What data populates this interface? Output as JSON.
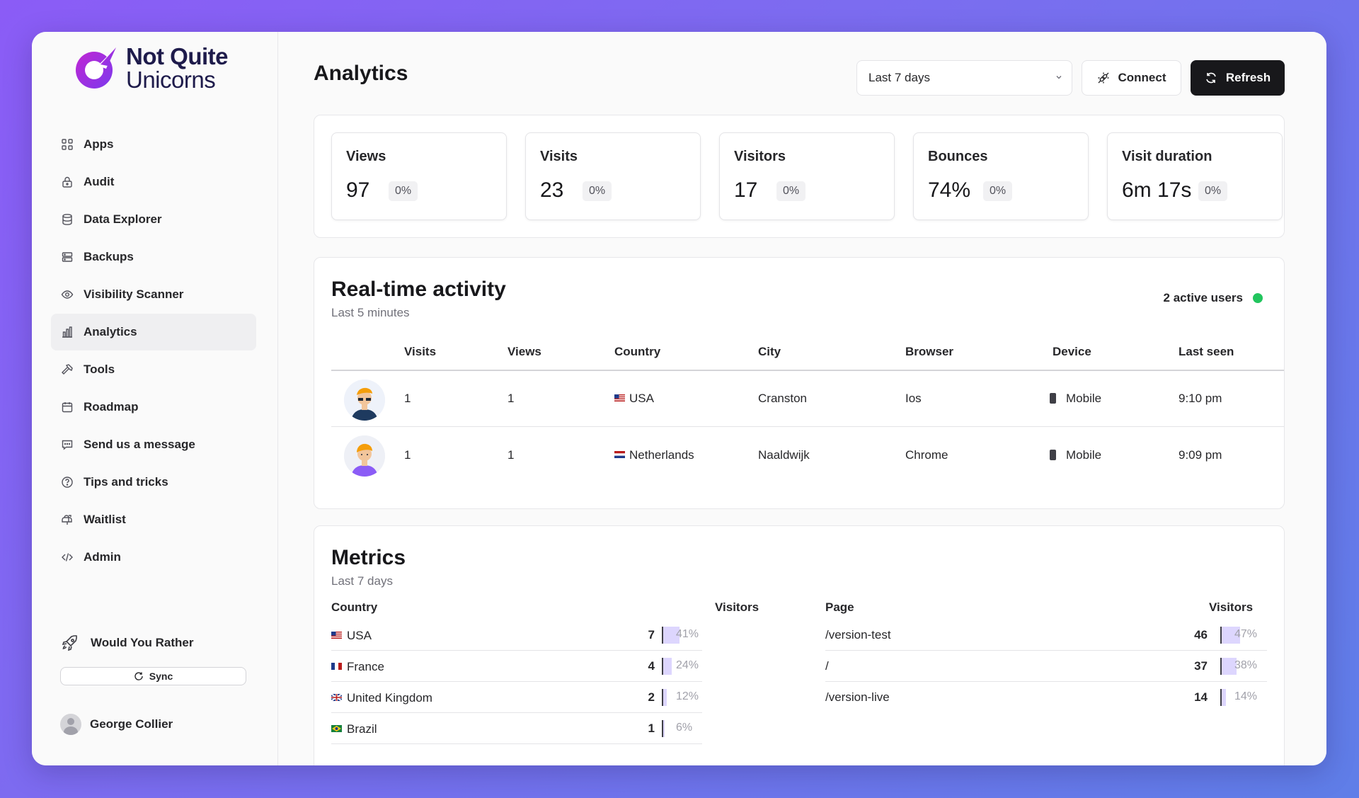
{
  "brand": {
    "line1": "Not Quite",
    "line2": "Unicorns"
  },
  "sidebar": {
    "items": [
      {
        "label": "Apps",
        "icon": "grid-icon"
      },
      {
        "label": "Audit",
        "icon": "lock-icon"
      },
      {
        "label": "Data Explorer",
        "icon": "database-icon"
      },
      {
        "label": "Backups",
        "icon": "server-icon"
      },
      {
        "label": "Visibility Scanner",
        "icon": "eye-icon"
      },
      {
        "label": "Analytics",
        "icon": "bar-chart-icon",
        "active": true
      },
      {
        "label": "Tools",
        "icon": "hammer-icon"
      },
      {
        "label": "Roadmap",
        "icon": "calendar-icon"
      },
      {
        "label": "Send us a message",
        "icon": "message-icon"
      },
      {
        "label": "Tips and tricks",
        "icon": "help-circle-icon"
      },
      {
        "label": "Waitlist",
        "icon": "mailbox-icon"
      },
      {
        "label": "Admin",
        "icon": "code-icon"
      }
    ],
    "app_name": "Would You Rather",
    "sync_label": "Sync",
    "user_name": "George Collier"
  },
  "header": {
    "title": "Analytics",
    "date_range": "Last 7 days",
    "connect_label": "Connect",
    "refresh_label": "Refresh"
  },
  "stats": [
    {
      "label": "Views",
      "value": "97",
      "change": "0%"
    },
    {
      "label": "Visits",
      "value": "23",
      "change": "0%"
    },
    {
      "label": "Visitors",
      "value": "17",
      "change": "0%"
    },
    {
      "label": "Bounces",
      "value": "74%",
      "change": "0%"
    },
    {
      "label": "Visit duration",
      "value": "6m 17s",
      "change": "0%"
    }
  ],
  "realtime": {
    "title": "Real-time activity",
    "subtitle": "Last 5 minutes",
    "active_users": "2 active users",
    "columns": [
      "Visits",
      "Views",
      "Country",
      "City",
      "Browser",
      "Device",
      "Last seen"
    ],
    "rows": [
      {
        "visits": "1",
        "views": "1",
        "country": "USA",
        "city": "Cranston",
        "browser": "Ios",
        "device": "Mobile",
        "last_seen": "9:10 pm"
      },
      {
        "visits": "1",
        "views": "1",
        "country": "Netherlands",
        "city": "Naaldwijk",
        "browser": "Chrome",
        "device": "Mobile",
        "last_seen": "9:09 pm"
      }
    ]
  },
  "metrics": {
    "title": "Metrics",
    "subtitle": "Last 7 days",
    "country_header": "Country",
    "country_visitors_header": "Visitors",
    "countries": [
      {
        "name": "USA",
        "visitors": "7",
        "percent": "41%",
        "share": 0.41
      },
      {
        "name": "France",
        "visitors": "4",
        "percent": "24%",
        "share": 0.24
      },
      {
        "name": "United Kingdom",
        "visitors": "2",
        "percent": "12%",
        "share": 0.12
      },
      {
        "name": "Brazil",
        "visitors": "1",
        "percent": "6%",
        "share": 0.06
      }
    ],
    "page_header": "Page",
    "page_visitors_header": "Visitors",
    "pages": [
      {
        "name": "/version-test",
        "visitors": "46",
        "percent": "47%",
        "share": 0.47
      },
      {
        "name": "/",
        "visitors": "37",
        "percent": "38%",
        "share": 0.38
      },
      {
        "name": "/version-live",
        "visitors": "14",
        "percent": "14%",
        "share": 0.14
      }
    ]
  }
}
